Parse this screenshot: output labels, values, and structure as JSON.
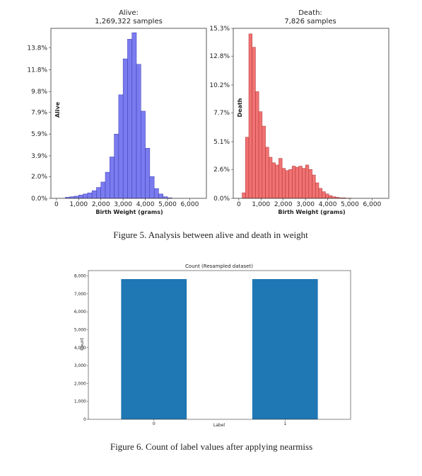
{
  "captions": {
    "fig5": "Figure 5. Analysis between alive and death in weight",
    "fig6": "Figure 6. Count of label values after applying nearmiss"
  },
  "chart_data": [
    {
      "type": "bar",
      "title_line1": "Alive:",
      "title_line2": "1,269,322 samples",
      "xlabel": "Birth Weight (grams)",
      "ylabel": "Alive",
      "color": "#7b7bf0",
      "edge_color": "#3a3ab0",
      "xlim": [
        -250,
        6750
      ],
      "ylim": [
        0,
        15.6
      ],
      "xticks": [
        "0",
        "1,000",
        "2,000",
        "3,000",
        "4,000",
        "5,000",
        "6,000"
      ],
      "xtick_values": [
        0,
        1000,
        2000,
        3000,
        4000,
        5000,
        6000
      ],
      "yticks": [
        "0.0%",
        "2.0%",
        "3.9%",
        "5.9%",
        "7.9%",
        "9.8%",
        "11.8%",
        "13.8%"
      ],
      "ytick_values": [
        0,
        2.0,
        3.9,
        5.9,
        7.9,
        9.8,
        11.8,
        13.8
      ],
      "bin_width": 200,
      "bin_starts": [
        400,
        600,
        800,
        1000,
        1200,
        1400,
        1600,
        1800,
        2000,
        2200,
        2400,
        2600,
        2800,
        3000,
        3200,
        3400,
        3600,
        3800,
        4000,
        4200,
        4400,
        4600,
        4800,
        5000
      ],
      "values": [
        0.1,
        0.15,
        0.2,
        0.3,
        0.4,
        0.5,
        0.7,
        1.0,
        1.5,
        2.4,
        3.8,
        5.9,
        9.5,
        12.8,
        14.6,
        15.2,
        12.3,
        8.0,
        4.6,
        2.0,
        0.9,
        0.4,
        0.15,
        0.05
      ]
    },
    {
      "type": "bar",
      "title_line1": "Death:",
      "title_line2": "7,826 samples",
      "xlabel": "Birth Weight (grams)",
      "ylabel": "Death",
      "color": "#f07272",
      "edge_color": "#b03030",
      "xlim": [
        -250,
        6750
      ],
      "ylim": [
        0,
        15.3
      ],
      "xticks": [
        "0",
        "1,000",
        "2,000",
        "3,000",
        "4,000",
        "5,000",
        "6,000"
      ],
      "xtick_values": [
        0,
        1000,
        2000,
        3000,
        4000,
        5000,
        6000
      ],
      "yticks": [
        "0.0%",
        "2.6%",
        "5.1%",
        "7.7%",
        "10.2%",
        "12.8%",
        "15.3%"
      ],
      "ytick_values": [
        0,
        2.6,
        5.1,
        7.7,
        10.2,
        12.8,
        15.3
      ],
      "bin_width": 150,
      "bin_starts": [
        150,
        300,
        450,
        600,
        750,
        900,
        1050,
        1200,
        1350,
        1500,
        1650,
        1800,
        1950,
        2100,
        2250,
        2400,
        2550,
        2700,
        2850,
        3000,
        3150,
        3300,
        3450,
        3600,
        3750,
        3900,
        4050,
        4200,
        4350,
        4500,
        4650,
        4800,
        4950
      ],
      "values": [
        0.5,
        5.5,
        14.8,
        13.6,
        9.6,
        7.8,
        6.5,
        4.6,
        3.7,
        3.2,
        3.0,
        3.6,
        2.7,
        2.5,
        2.6,
        2.9,
        2.8,
        2.9,
        2.7,
        3.0,
        2.6,
        2.1,
        1.4,
        0.9,
        0.6,
        0.4,
        0.25,
        0.15,
        0.1,
        0.05,
        0.05,
        0.02,
        0.02
      ]
    },
    {
      "type": "bar",
      "title": "Count (Resampled dataset)",
      "xlabel": "Label",
      "ylabel": "Count",
      "color": "#1f77b4",
      "categories": [
        "0",
        "1"
      ],
      "values": [
        7826,
        7826
      ],
      "ylim": [
        0,
        8300
      ],
      "yticks": [
        "0",
        "1,000",
        "2,000",
        "3,000",
        "4,000",
        "5,000",
        "6,000",
        "7,000",
        "8,000"
      ],
      "ytick_values": [
        0,
        1000,
        2000,
        3000,
        4000,
        5000,
        6000,
        7000,
        8000
      ]
    }
  ]
}
